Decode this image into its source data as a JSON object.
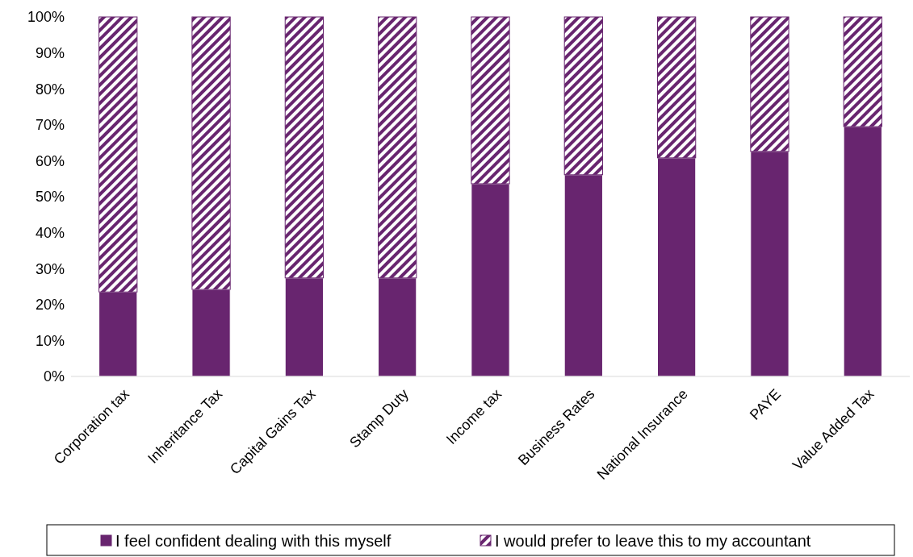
{
  "chart_data": {
    "type": "bar",
    "stacked": true,
    "categories": [
      "Corporation tax",
      "Inheritance Tax",
      "Capital Gains Tax",
      "Stamp Duty",
      "Income tax",
      "Business Rates",
      "National Insurance",
      "PAYE",
      "Value Added Tax"
    ],
    "series": [
      {
        "name": "I feel confident dealing with this myself",
        "color": "#68256f",
        "values": [
          23.5,
          24.2,
          27.4,
          27.4,
          53.6,
          56.1,
          60.8,
          62.6,
          69.5
        ]
      },
      {
        "name": "I would prefer to leave this to my accountant",
        "color": "#68256f",
        "values": [
          76.5,
          75.8,
          72.6,
          72.6,
          46.4,
          43.9,
          39.2,
          37.4,
          30.5
        ]
      }
    ],
    "ylim": [
      0,
      100
    ],
    "yticks": [
      {
        "value": 0,
        "label": "0%"
      },
      {
        "value": 10,
        "label": "10%"
      },
      {
        "value": 20,
        "label": "20%"
      },
      {
        "value": 30,
        "label": "30%"
      },
      {
        "value": 40,
        "label": "40%"
      },
      {
        "value": 50,
        "label": "50%"
      },
      {
        "value": 60,
        "label": "60%"
      },
      {
        "value": 70,
        "label": "70%"
      },
      {
        "value": 80,
        "label": "80%"
      },
      {
        "value": 90,
        "label": "90%"
      },
      {
        "value": 100,
        "label": "100%"
      }
    ],
    "grid": false,
    "legend": "bottom"
  }
}
